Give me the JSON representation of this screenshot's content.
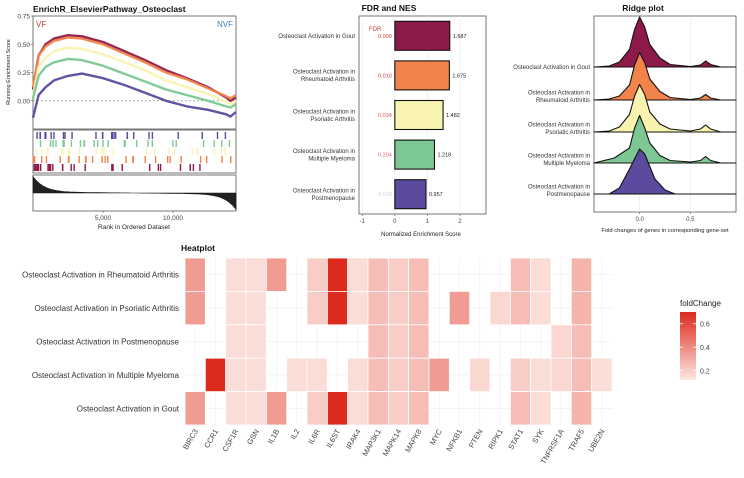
{
  "colors": {
    "gout": "#8e1a4a",
    "ra": "#f2834a",
    "psoriatic": "#f9f3b0",
    "myeloma": "#7cc793",
    "postmeno": "#5b4a9e",
    "vf": "#c0392b",
    "nvf": "#3b7fb5",
    "heat_low": "#fde7e2",
    "heat_high": "#dc2a1c"
  },
  "chart_data": [
    {
      "type": "line",
      "title": "EnrichR_ElsevierPathway_Osteoclast",
      "corner_left": "VF",
      "corner_right": "NVF",
      "ylabel": "Running Enrichment Score",
      "xlabel": "Rank in Ordered Dataset",
      "xlim": [
        0,
        14500
      ],
      "ylim": [
        -0.25,
        0.75
      ],
      "xticks": [
        5000,
        10000
      ],
      "xtick_labels": [
        "5,000",
        "10,000"
      ],
      "yticks": [
        0,
        0.25,
        0.5,
        0.75
      ],
      "ytick_labels": [
        "0.00",
        "0.25",
        "0.50",
        "0.75"
      ],
      "series": [
        {
          "name": "Osteoclast Activation in Gout",
          "color_key": "gout",
          "x": [
            0,
            400,
            900,
            1500,
            2500,
            3500,
            5000,
            6500,
            8000,
            9500,
            11000,
            12500,
            13800,
            14100,
            14500
          ],
          "y": [
            0.1,
            0.4,
            0.5,
            0.55,
            0.58,
            0.57,
            0.52,
            0.44,
            0.36,
            0.27,
            0.2,
            0.12,
            0.03,
            0.0,
            0.03
          ]
        },
        {
          "name": "Osteoclast Activation in Rheumatoid Arthritis",
          "color_key": "ra",
          "x": [
            0,
            400,
            900,
            1500,
            2500,
            3500,
            5000,
            6500,
            8000,
            9500,
            11000,
            12500,
            13800,
            14100,
            14500
          ],
          "y": [
            0.12,
            0.4,
            0.48,
            0.53,
            0.56,
            0.55,
            0.5,
            0.42,
            0.34,
            0.25,
            0.19,
            0.11,
            0.04,
            0.02,
            0.05
          ]
        },
        {
          "name": "Osteoclast Activation in Psoriatic Arthritis",
          "color_key": "psoriatic",
          "x": [
            0,
            400,
            900,
            1500,
            2500,
            3500,
            5000,
            6500,
            8000,
            9500,
            11000,
            12500,
            13800,
            14100,
            14500
          ],
          "y": [
            0.05,
            0.3,
            0.38,
            0.44,
            0.47,
            0.46,
            0.41,
            0.34,
            0.27,
            0.18,
            0.12,
            0.06,
            -0.01,
            -0.03,
            0.0
          ]
        },
        {
          "name": "Osteoclast Activation in Multiple Myeloma",
          "color_key": "myeloma",
          "x": [
            0,
            400,
            900,
            1500,
            2500,
            3500,
            5000,
            6500,
            8000,
            9500,
            11000,
            12500,
            13800,
            14100,
            14500
          ],
          "y": [
            0.02,
            0.22,
            0.3,
            0.34,
            0.37,
            0.36,
            0.31,
            0.24,
            0.17,
            0.1,
            0.05,
            0.0,
            -0.05,
            -0.06,
            -0.03
          ]
        },
        {
          "name": "Osteoclast Activation in Postmenopause",
          "color_key": "postmeno",
          "x": [
            0,
            400,
            900,
            1500,
            2500,
            3500,
            5000,
            6500,
            8000,
            9500,
            11000,
            12500,
            13800,
            14100,
            14500
          ],
          "y": [
            -0.15,
            0.05,
            0.12,
            0.18,
            0.22,
            0.24,
            0.2,
            0.14,
            0.07,
            0.0,
            -0.05,
            -0.08,
            -0.12,
            -0.14,
            -0.1
          ]
        }
      ]
    },
    {
      "type": "bar",
      "title": "FDR and NES",
      "fdr_header": "FDR",
      "xlabel": "Normalized Enrichment Score",
      "xlim": [
        -1.1,
        2.8
      ],
      "xticks": [
        -1,
        0,
        1,
        2
      ],
      "categories": [
        "Osteoclast Activation in Gout",
        "Osteoclast Activation in Rheumatoid Arthritis",
        "Osteoclast Activation in Psoriatic Arthritis",
        "Osteoclast Activation in Multiple Myeloma",
        "Osteoclast Activation in Postmenopause"
      ],
      "category_lines": [
        [
          "Osteoclast Activation in Gout"
        ],
        [
          "Osteoclast Activation in",
          "Rheumatoid Arthritis"
        ],
        [
          "Osteoclast Activation in",
          "Psoriatic Arthritis"
        ],
        [
          "Osteoclast Activation in",
          "Multiple Myeloma"
        ],
        [
          "Osteoclast Activation in",
          "Postmenopause"
        ]
      ],
      "values": [
        1.687,
        1.675,
        1.482,
        1.218,
        0.957
      ],
      "value_labels": [
        "1.687",
        "1.675",
        "1.482",
        "1.218",
        "0.957"
      ],
      "fdr": [
        "0.009",
        "0.010",
        "0.034",
        "0.204",
        "0.518"
      ],
      "fdr_colors": [
        "#d43a3a",
        "#d43a3a",
        "#d95555",
        "#d96a6a",
        "#cfcfe8"
      ],
      "color_keys": [
        "gout",
        "ra",
        "psoriatic",
        "myeloma",
        "postmeno"
      ]
    },
    {
      "type": "area",
      "title": "Ridge plot",
      "xlabel": "Fold changes of genes in corresponding gene-set",
      "xlim": [
        -0.45,
        0.95
      ],
      "xticks": [
        0,
        0.5
      ],
      "xtick_labels": [
        "0.0",
        "0.5"
      ],
      "categories": [
        "Osteoclast Activation in Gout",
        "Osteoclast Activation in Rheumatoid Arthritis",
        "Osteoclast Activation in Psoriatic Arthritis",
        "Osteoclast Activation in Multiple Myeloma",
        "Osteoclast Activation in Postmenopause"
      ],
      "category_lines": [
        [
          "Osteoclast Activation in Gout"
        ],
        [
          "Osteoclast Activation in",
          "Rheumatoid Arthritis"
        ],
        [
          "Osteoclast Activation in",
          "Psoriatic Arthritis"
        ],
        [
          "Osteoclast Activation in",
          "Multiple Myeloma"
        ],
        [
          "Osteoclast Activation in",
          "Postmenopause"
        ]
      ],
      "color_keys": [
        "gout",
        "ra",
        "psoriatic",
        "myeloma",
        "postmeno"
      ],
      "ridges": [
        {
          "x": [
            -0.45,
            -0.3,
            -0.2,
            -0.1,
            -0.05,
            0.0,
            0.05,
            0.1,
            0.2,
            0.3,
            0.5,
            0.6,
            0.65,
            0.7,
            0.8,
            0.95
          ],
          "y": [
            0,
            0.02,
            0.1,
            0.35,
            0.75,
            1.0,
            0.8,
            0.45,
            0.18,
            0.05,
            0.01,
            0.04,
            0.12,
            0.05,
            0.0,
            0
          ]
        },
        {
          "x": [
            -0.45,
            -0.3,
            -0.2,
            -0.1,
            -0.05,
            0.0,
            0.05,
            0.1,
            0.2,
            0.3,
            0.5,
            0.6,
            0.65,
            0.7,
            0.8,
            0.95
          ],
          "y": [
            0,
            0.02,
            0.08,
            0.3,
            0.7,
            0.95,
            0.75,
            0.42,
            0.17,
            0.05,
            0.01,
            0.04,
            0.11,
            0.04,
            0.0,
            0
          ]
        },
        {
          "x": [
            -0.45,
            -0.3,
            -0.2,
            -0.1,
            -0.05,
            0.0,
            0.05,
            0.1,
            0.2,
            0.3,
            0.5,
            0.6,
            0.65,
            0.7,
            0.8,
            0.95
          ],
          "y": [
            0,
            0.02,
            0.1,
            0.35,
            0.72,
            0.95,
            0.75,
            0.4,
            0.16,
            0.06,
            0.02,
            0.06,
            0.14,
            0.06,
            0.0,
            0
          ]
        },
        {
          "x": [
            -0.45,
            -0.35,
            -0.25,
            -0.1,
            -0.05,
            0.0,
            0.05,
            0.1,
            0.2,
            0.3,
            0.5,
            0.6,
            0.65,
            0.7,
            0.8,
            0.95
          ],
          "y": [
            0,
            0.05,
            0.1,
            0.3,
            0.7,
            0.95,
            0.7,
            0.4,
            0.15,
            0.05,
            0.02,
            0.05,
            0.13,
            0.05,
            0.0,
            0
          ]
        },
        {
          "x": [
            -0.45,
            -0.3,
            -0.2,
            -0.1,
            0.0,
            0.05,
            0.1,
            0.15,
            0.25,
            0.35,
            0.95
          ],
          "y": [
            0,
            0.0,
            0.12,
            0.5,
            0.9,
            0.8,
            0.55,
            0.3,
            0.08,
            0.0,
            0
          ]
        }
      ]
    },
    {
      "type": "heatmap",
      "title": "Heatplot",
      "legend_title": "foldChange",
      "legend_ticks": [
        0.2,
        0.4,
        0.6
      ],
      "legend_labels": [
        "0.2",
        "0.4",
        "0.6"
      ],
      "value_range": [
        0.12,
        0.7
      ],
      "rows": [
        "Osteoclast Activation in Rheumatoid Arthritis",
        "Osteoclast Activation in Psoriatic Arthritis",
        "Osteoclast Activation in Postmenopause",
        "Osteoclast Activation in Multiple Myeloma",
        "Osteoclast Activation in Gout"
      ],
      "columns": [
        "BIRC3",
        "CCR1",
        "CSF1R",
        "GSN",
        "IL1B",
        "IL2",
        "IL6R",
        "IL6ST",
        "IRAK4",
        "MAP3K1",
        "MAPK14",
        "MAPK8",
        "MYC",
        "NFKB1",
        "PTEN",
        "RIPK1",
        "STAT1",
        "SYK",
        "TNFRSF1A",
        "TRAF5",
        "UBE2N"
      ],
      "values": [
        [
          0.35,
          null,
          0.15,
          0.15,
          0.35,
          null,
          0.2,
          0.7,
          0.15,
          0.25,
          0.2,
          0.25,
          null,
          null,
          null,
          null,
          0.25,
          0.15,
          null,
          0.28,
          null
        ],
        [
          0.35,
          null,
          0.15,
          0.15,
          null,
          null,
          0.2,
          0.7,
          0.15,
          0.25,
          0.2,
          0.25,
          null,
          0.35,
          null,
          0.17,
          0.25,
          0.15,
          null,
          0.28,
          null
        ],
        [
          null,
          null,
          0.15,
          0.15,
          null,
          null,
          null,
          null,
          null,
          0.25,
          0.2,
          0.25,
          null,
          null,
          null,
          null,
          null,
          null,
          0.17,
          0.25,
          null
        ],
        [
          null,
          0.7,
          0.15,
          0.15,
          null,
          0.15,
          0.15,
          null,
          0.15,
          0.25,
          0.2,
          0.25,
          0.35,
          null,
          0.17,
          null,
          0.2,
          0.15,
          0.17,
          0.25,
          0.15
        ],
        [
          0.35,
          null,
          0.15,
          0.15,
          0.35,
          null,
          0.2,
          0.7,
          0.15,
          0.25,
          0.2,
          0.25,
          null,
          null,
          null,
          null,
          0.25,
          0.15,
          null,
          0.28,
          null
        ]
      ]
    }
  ]
}
